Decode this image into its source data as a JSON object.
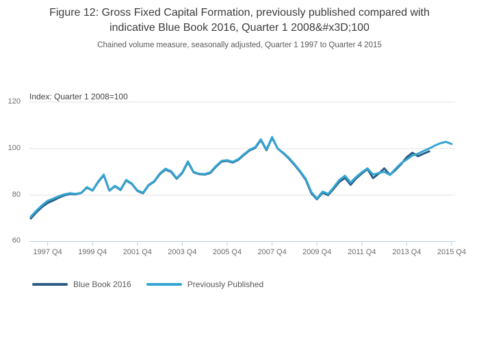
{
  "chart_data": {
    "type": "line",
    "title": "Figure 12: Gross Fixed Capital Formation, previously published compared with indicative Blue Book 2016, Quarter 1 2008&#x3D;100",
    "subtitle": "Chained volume measure, seasonally adjusted, Quarter 1 1997 to Quarter 4 2015",
    "annotation": "Index: Quarter 1 2008=100",
    "x_start": "1997 Q1",
    "x_end": "2015 Q4",
    "x_tick_labels": [
      "1997 Q4",
      "1999 Q4",
      "2001 Q4",
      "2003 Q4",
      "2005 Q4",
      "2007 Q4",
      "2009 Q4",
      "2011 Q4",
      "2013 Q4",
      "2015 Q4"
    ],
    "x_tick_quarter_indices": [
      3,
      11,
      19,
      27,
      35,
      43,
      51,
      59,
      67,
      75
    ],
    "y_ticks": [
      60,
      80,
      100,
      120
    ],
    "ylim": [
      60,
      120
    ],
    "grid": "horizontal-only",
    "legend_position": "bottom-left",
    "series": [
      {
        "name": "Blue Book 2016",
        "color": "#2a5c85",
        "start_quarter": "1997 Q1",
        "end_quarter": "2014 Q4",
        "values": [
          69.9,
          72.6,
          74.9,
          76.6,
          77.7,
          78.9,
          79.9,
          80.5,
          80.3,
          80.9,
          83.2,
          81.9,
          85.6,
          88.6,
          81.9,
          83.8,
          82.2,
          86.3,
          84.8,
          81.8,
          80.8,
          84.2,
          85.8,
          89.0,
          91.0,
          90.0,
          87.0,
          89.5,
          94.2,
          89.8,
          89.0,
          88.8,
          89.5,
          92.2,
          94.4,
          94.7,
          94.0,
          95.2,
          97.3,
          99.2,
          100.3,
          103.7,
          99.3,
          104.7,
          100.0,
          98.0,
          95.7,
          93.0,
          90.0,
          86.6,
          80.8,
          78.2,
          81.0,
          80.0,
          82.8,
          85.7,
          87.4,
          84.4,
          87.2,
          89.3,
          91.2,
          87.3,
          89.2,
          91.5,
          88.7,
          90.8,
          93.3,
          96.3,
          98.2,
          96.7,
          97.8,
          98.8
        ]
      },
      {
        "name": "Previously Published",
        "color": "#35a5d1",
        "start_quarter": "1997 Q1",
        "end_quarter": "2015 Q4",
        "values": [
          70.7,
          73.3,
          75.6,
          77.5,
          78.5,
          79.5,
          80.3,
          80.8,
          80.5,
          81.0,
          83.4,
          82.0,
          85.8,
          88.8,
          82.0,
          84.0,
          82.4,
          86.5,
          85.0,
          82.0,
          81.0,
          84.4,
          86.0,
          89.3,
          91.3,
          90.3,
          87.2,
          89.8,
          94.5,
          90.0,
          89.2,
          89.0,
          89.8,
          92.5,
          94.7,
          95.0,
          94.3,
          95.5,
          97.6,
          99.5,
          100.6,
          104.0,
          99.6,
          105.0,
          100.0,
          98.2,
          96.0,
          93.3,
          90.3,
          87.0,
          81.3,
          78.5,
          81.5,
          80.5,
          83.4,
          86.5,
          88.3,
          85.4,
          87.8,
          89.8,
          91.5,
          88.8,
          89.5,
          90.0,
          88.7,
          91.3,
          93.7,
          95.3,
          97.0,
          97.8,
          99.0,
          100.0,
          101.3,
          102.3,
          102.9,
          102.0
        ]
      }
    ],
    "colors": {
      "gridline": "#e0e0e0",
      "axis_line": "#b9cfdf",
      "title_text": "#3b3b3b",
      "subtitle_text": "#595959",
      "tick_label_text": "#6b6b6b"
    }
  }
}
